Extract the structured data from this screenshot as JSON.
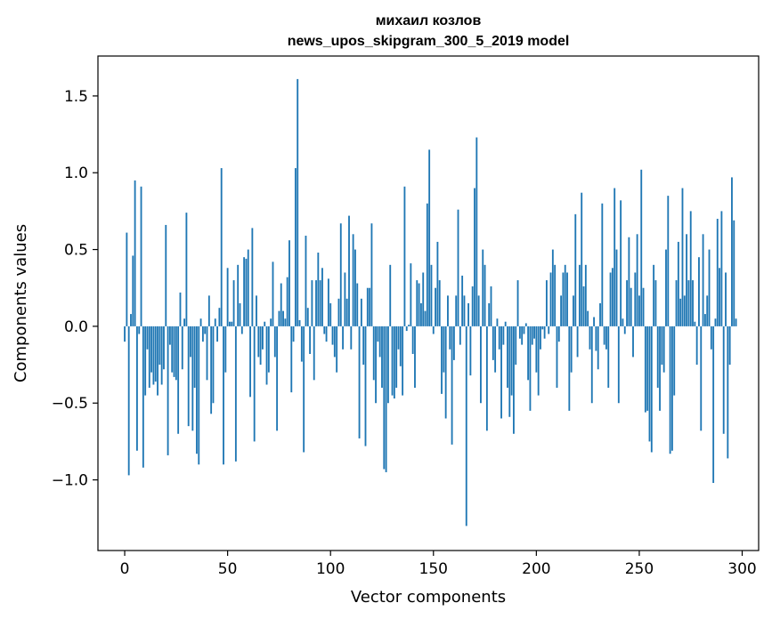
{
  "chart_data": {
    "type": "bar",
    "title": "михаил козлов",
    "subtitle": "news_upos_skipgram_300_5_2019 model",
    "xlabel": "Vector components",
    "ylabel": "Components values",
    "xlim": [
      -13,
      308
    ],
    "ylim": [
      -1.46,
      1.76
    ],
    "xticks": [
      0,
      50,
      100,
      150,
      200,
      250,
      300
    ],
    "xtick_labels": [
      "0",
      "50",
      "100",
      "150",
      "200",
      "250",
      "300"
    ],
    "yticks": [
      -1.0,
      -0.5,
      0.0,
      0.5,
      1.0,
      1.5
    ],
    "ytick_labels": [
      "−1.0",
      "−0.5",
      "0.0",
      "0.5",
      "1.0",
      "1.5"
    ],
    "bar_color": "#1f77b4",
    "grid": false,
    "legend": "none",
    "categories_start": 0,
    "values": [
      -0.1,
      0.61,
      -0.97,
      0.08,
      0.46,
      0.95,
      -0.81,
      -0.05,
      0.91,
      -0.92,
      -0.45,
      -0.15,
      -0.4,
      -0.3,
      -0.38,
      -0.36,
      -0.45,
      -0.25,
      -0.38,
      -0.28,
      0.66,
      -0.84,
      -0.12,
      -0.3,
      -0.33,
      -0.35,
      -0.7,
      0.22,
      -0.28,
      0.05,
      0.74,
      -0.65,
      -0.2,
      -0.68,
      -0.4,
      -0.83,
      -0.9,
      0.05,
      -0.1,
      -0.05,
      -0.35,
      0.2,
      -0.57,
      -0.5,
      0.05,
      -0.1,
      0.12,
      1.03,
      -0.9,
      -0.3,
      0.38,
      0.03,
      0.03,
      0.3,
      -0.88,
      0.4,
      0.15,
      -0.05,
      0.45,
      0.44,
      0.5,
      -0.46,
      0.64,
      -0.75,
      0.2,
      -0.2,
      -0.25,
      -0.15,
      0.03,
      -0.38,
      -0.3,
      0.05,
      0.42,
      -0.2,
      -0.68,
      0.1,
      0.28,
      0.1,
      0.05,
      0.32,
      0.56,
      -0.43,
      -0.1,
      1.03,
      1.61,
      0.04,
      -0.23,
      -0.82,
      0.59,
      0.12,
      -0.18,
      0.3,
      -0.35,
      0.3,
      0.48,
      0.3,
      0.38,
      -0.05,
      -0.1,
      0.31,
      0.15,
      -0.12,
      -0.2,
      -0.3,
      0.18,
      0.67,
      -0.15,
      0.35,
      0.18,
      0.72,
      -0.15,
      0.6,
      0.5,
      0.28,
      -0.73,
      0.18,
      -0.25,
      -0.78,
      0.25,
      0.25,
      0.67,
      -0.35,
      -0.5,
      -0.1,
      -0.2,
      -0.4,
      -0.93,
      -0.95,
      -0.5,
      0.4,
      -0.45,
      -0.47,
      -0.4,
      -0.15,
      -0.26,
      -0.45,
      0.91,
      -0.03,
      0.01,
      0.41,
      -0.18,
      -0.4,
      0.3,
      0.28,
      0.15,
      0.35,
      0.1,
      0.8,
      1.15,
      0.4,
      -0.05,
      0.25,
      0.55,
      0.3,
      -0.44,
      -0.3,
      -0.6,
      0.2,
      -0.15,
      -0.77,
      -0.22,
      0.2,
      0.76,
      -0.12,
      0.33,
      0.2,
      -1.3,
      0.15,
      -0.32,
      0.26,
      0.9,
      1.23,
      0.2,
      -0.5,
      0.5,
      0.4,
      -0.68,
      0.15,
      0.26,
      -0.22,
      -0.3,
      0.05,
      -0.15,
      -0.6,
      -0.12,
      0.03,
      -0.4,
      -0.59,
      -0.45,
      -0.7,
      -0.25,
      0.3,
      -0.08,
      -0.12,
      -0.05,
      0.02,
      -0.35,
      -0.55,
      -0.12,
      -0.08,
      -0.3,
      -0.45,
      -0.15,
      -0.02,
      -0.08,
      0.3,
      -0.05,
      0.35,
      0.5,
      0.4,
      -0.4,
      -0.1,
      0.2,
      0.35,
      0.4,
      0.35,
      -0.55,
      -0.3,
      0.2,
      0.73,
      -0.2,
      0.4,
      0.87,
      0.26,
      0.4,
      0.1,
      -0.15,
      -0.5,
      0.06,
      -0.16,
      -0.28,
      0.15,
      0.8,
      -0.12,
      -0.15,
      -0.4,
      0.35,
      0.38,
      0.9,
      0.5,
      -0.5,
      0.82,
      0.05,
      -0.05,
      0.3,
      0.58,
      0.25,
      -0.2,
      0.35,
      0.6,
      0.2,
      1.02,
      0.25,
      -0.56,
      -0.55,
      -0.75,
      -0.82,
      0.4,
      0.3,
      -0.4,
      -0.55,
      -0.25,
      -0.3,
      0.5,
      0.85,
      -0.83,
      -0.81,
      -0.45,
      0.3,
      0.55,
      0.18,
      0.9,
      0.2,
      0.6,
      0.3,
      0.75,
      0.3,
      0.03,
      -0.25,
      0.45,
      -0.68,
      0.6,
      0.08,
      0.2,
      0.5,
      -0.15,
      -1.02,
      0.05,
      0.7,
      0.38,
      0.75,
      -0.7,
      0.35,
      -0.86,
      -0.25,
      0.97,
      0.69,
      0.05
    ]
  }
}
